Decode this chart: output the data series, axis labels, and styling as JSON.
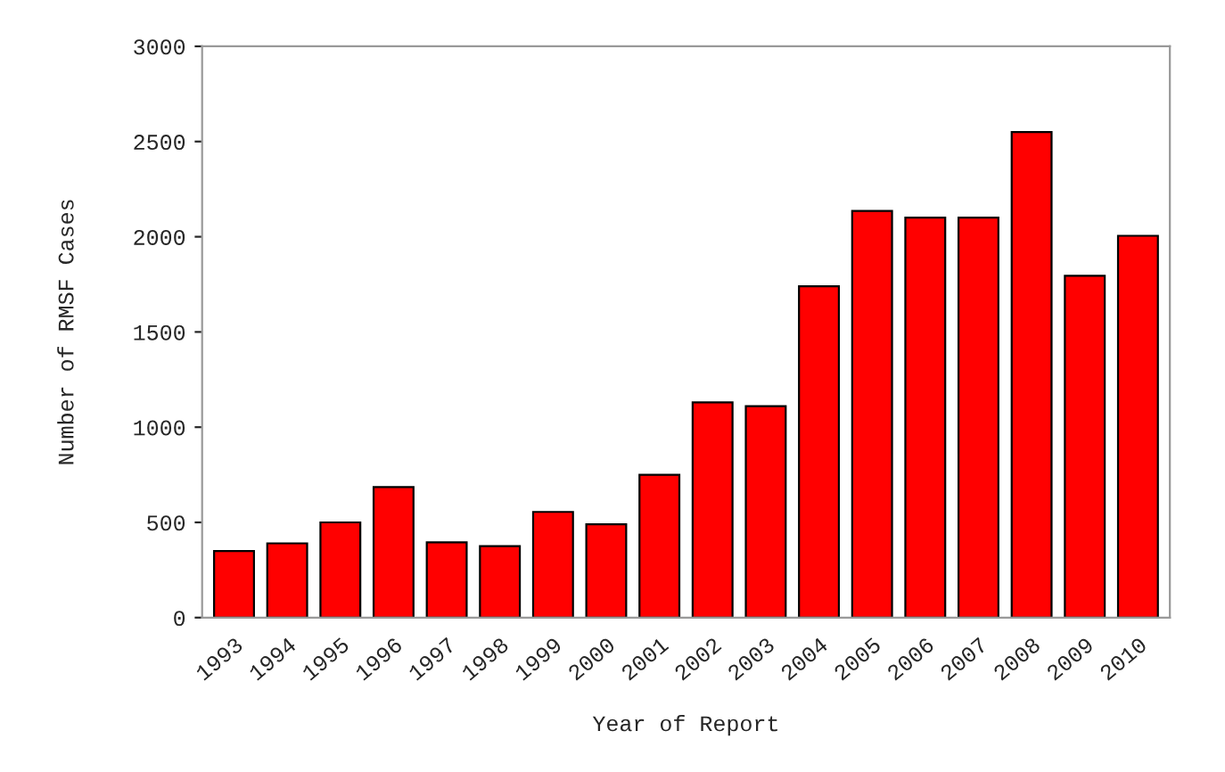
{
  "chart_data": {
    "type": "bar",
    "xlabel": "Year of Report",
    "ylabel": "Number of RMSF Cases",
    "categories": [
      "1993",
      "1994",
      "1995",
      "1996",
      "1997",
      "1998",
      "1999",
      "2000",
      "2001",
      "2002",
      "2003",
      "2004",
      "2005",
      "2006",
      "2007",
      "2008",
      "2009",
      "2010"
    ],
    "values": [
      350,
      390,
      500,
      685,
      395,
      375,
      555,
      490,
      750,
      1130,
      1110,
      1740,
      2135,
      2100,
      2100,
      2550,
      1795,
      2005
    ],
    "color": "#ff0000",
    "ylim": [
      0,
      3000
    ],
    "yticks": [
      0,
      500,
      1000,
      1500,
      2000,
      2500,
      3000
    ],
    "grid": false,
    "legend": false
  }
}
